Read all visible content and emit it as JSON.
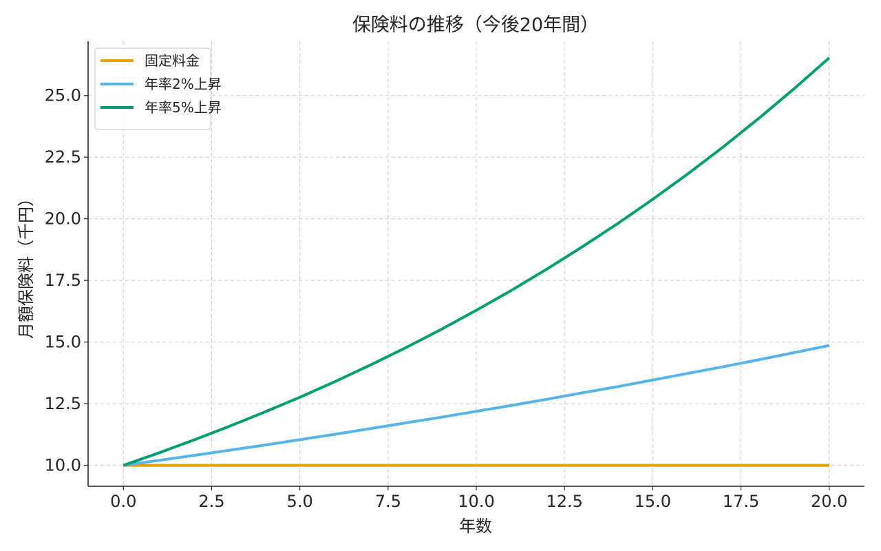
{
  "chart_data": {
    "type": "line",
    "title": "保険料の推移（今後20年間）",
    "xlabel": "年数",
    "ylabel": "月額保険料（千円）",
    "xlim": [
      -1,
      21
    ],
    "ylim": [
      9.15,
      27.2
    ],
    "xticks": [
      "0.0",
      "2.5",
      "5.0",
      "7.5",
      "10.0",
      "12.5",
      "15.0",
      "17.5",
      "20.0"
    ],
    "xtick_values": [
      0,
      2.5,
      5,
      7.5,
      10,
      12.5,
      15,
      17.5,
      20
    ],
    "yticks": [
      "10.0",
      "12.5",
      "15.0",
      "17.5",
      "20.0",
      "22.5",
      "25.0"
    ],
    "ytick_values": [
      10,
      12.5,
      15,
      17.5,
      20,
      22.5,
      25
    ],
    "grid": true,
    "legend_position": "top-left",
    "x": [
      0,
      1,
      2,
      3,
      4,
      5,
      6,
      7,
      8,
      9,
      10,
      11,
      12,
      13,
      14,
      15,
      16,
      17,
      18,
      19,
      20
    ],
    "series": [
      {
        "name": "固定料金",
        "color": "#E69F00",
        "values": [
          10,
          10,
          10,
          10,
          10,
          10,
          10,
          10,
          10,
          10,
          10,
          10,
          10,
          10,
          10,
          10,
          10,
          10,
          10,
          10,
          10
        ]
      },
      {
        "name": "年率2%上昇",
        "color": "#56B4E9",
        "values": [
          10,
          10.2,
          10.4,
          10.61,
          10.82,
          11.04,
          11.26,
          11.49,
          11.72,
          11.95,
          12.19,
          12.43,
          12.68,
          12.94,
          13.19,
          13.46,
          13.73,
          14.0,
          14.28,
          14.57,
          14.86
        ]
      },
      {
        "name": "年率5%上昇",
        "color": "#009E73",
        "values": [
          10,
          10.5,
          11.03,
          11.58,
          12.16,
          12.76,
          13.4,
          14.07,
          14.77,
          15.51,
          16.29,
          17.1,
          17.96,
          18.86,
          19.8,
          20.79,
          21.83,
          22.92,
          24.07,
          25.27,
          26.53
        ]
      }
    ]
  }
}
